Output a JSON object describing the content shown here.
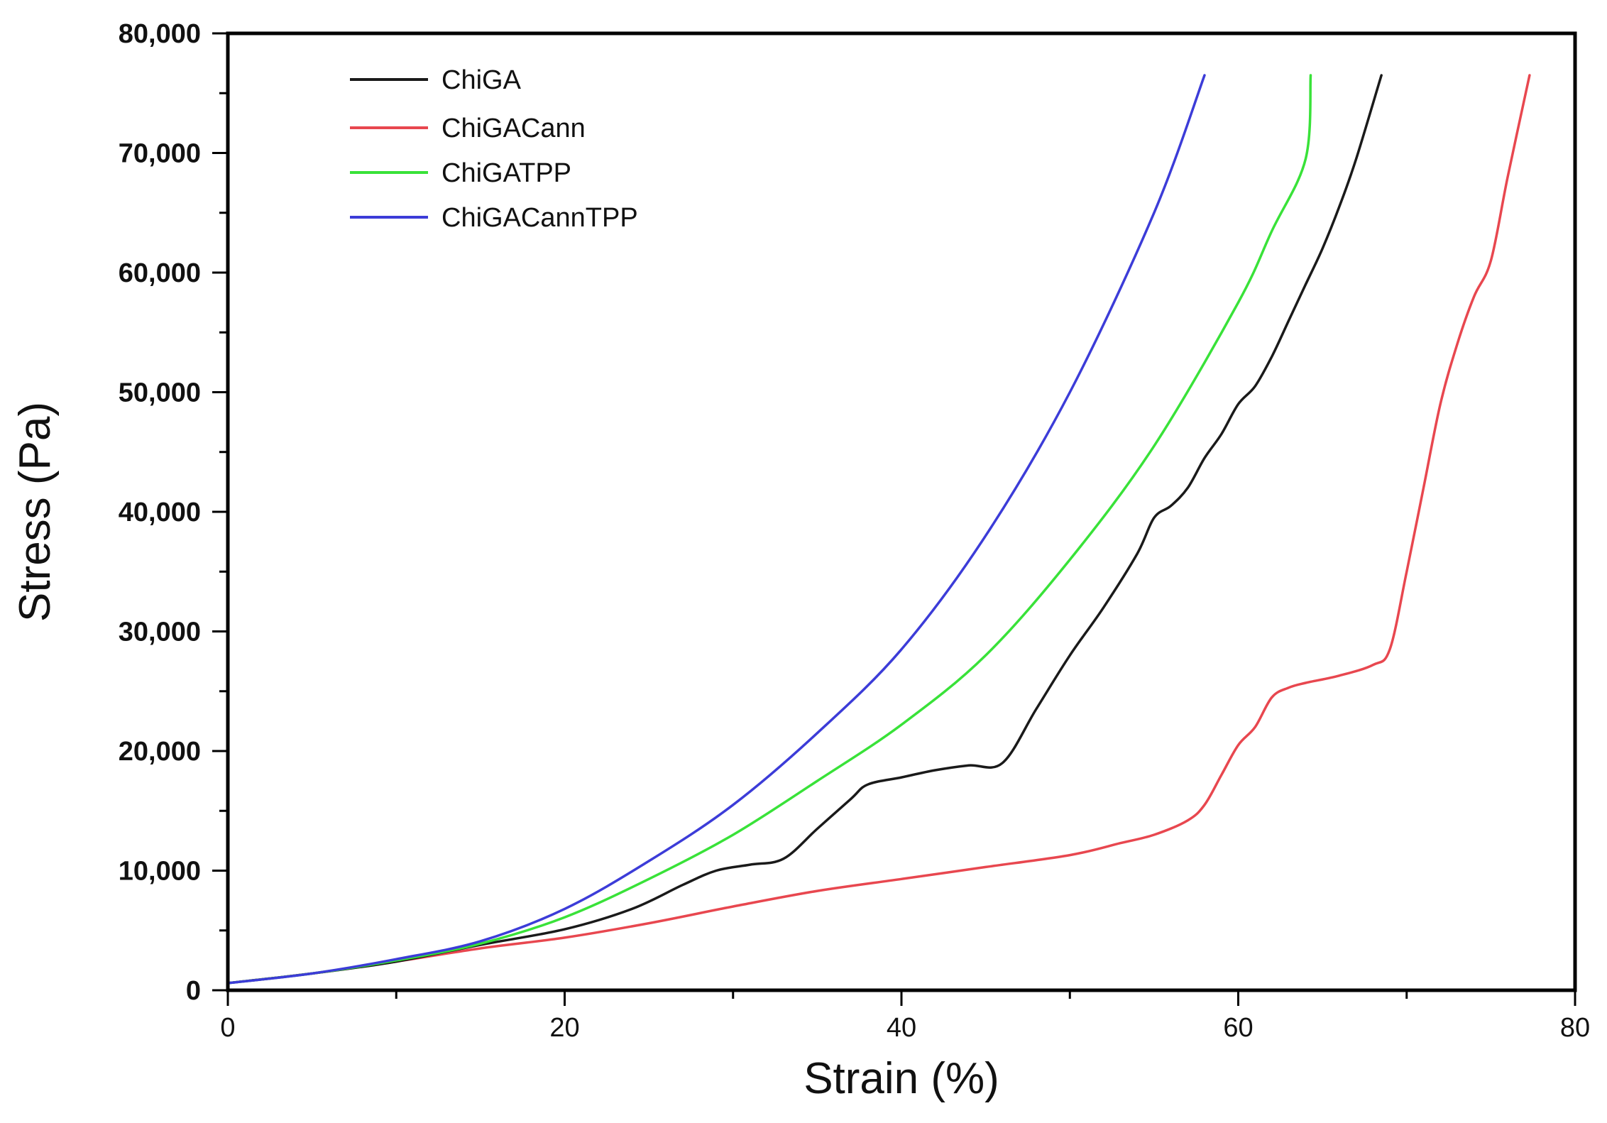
{
  "chart_data": {
    "type": "line",
    "title": "",
    "xlabel": "Strain (%)",
    "ylabel": "Stress (Pa)",
    "xlim": [
      0,
      80
    ],
    "ylim": [
      0,
      80000
    ],
    "x_ticks": [
      0,
      20,
      40,
      60,
      80
    ],
    "x_tick_labels": [
      "0",
      "20",
      "40",
      "60",
      "80"
    ],
    "y_ticks": [
      0,
      10000,
      20000,
      30000,
      40000,
      50000,
      60000,
      70000,
      80000
    ],
    "y_tick_labels": [
      "0",
      "10,000",
      "20,000",
      "30,000",
      "40,000",
      "50,000",
      "60,000",
      "70,000",
      "80,000"
    ],
    "grid": false,
    "legend_position": "top-left",
    "series": [
      {
        "name": "ChiGA",
        "color": "#1a1a1a",
        "points": [
          [
            0,
            600
          ],
          [
            5,
            1400
          ],
          [
            10,
            2400
          ],
          [
            15,
            3800
          ],
          [
            20,
            5100
          ],
          [
            24,
            6800
          ],
          [
            27,
            8800
          ],
          [
            29,
            10000
          ],
          [
            31,
            10500
          ],
          [
            33,
            11000
          ],
          [
            35,
            13500
          ],
          [
            37,
            16000
          ],
          [
            38,
            17200
          ],
          [
            40,
            17800
          ],
          [
            42,
            18400
          ],
          [
            44,
            18800
          ],
          [
            46,
            19000
          ],
          [
            48,
            23500
          ],
          [
            50,
            28000
          ],
          [
            52,
            32000
          ],
          [
            54,
            36500
          ],
          [
            55,
            39500
          ],
          [
            56,
            40500
          ],
          [
            57,
            42000
          ],
          [
            58,
            44500
          ],
          [
            59,
            46500
          ],
          [
            60,
            49000
          ],
          [
            61,
            50500
          ],
          [
            62,
            53000
          ],
          [
            63,
            56000
          ],
          [
            64,
            59000
          ],
          [
            65,
            62000
          ],
          [
            66,
            65500
          ],
          [
            67,
            69500
          ],
          [
            68.5,
            76500
          ]
        ]
      },
      {
        "name": "ChiGACann",
        "color": "#e8474f",
        "points": [
          [
            0,
            600
          ],
          [
            5,
            1400
          ],
          [
            10,
            2400
          ],
          [
            15,
            3500
          ],
          [
            20,
            4400
          ],
          [
            25,
            5600
          ],
          [
            30,
            7000
          ],
          [
            35,
            8300
          ],
          [
            40,
            9300
          ],
          [
            45,
            10300
          ],
          [
            50,
            11300
          ],
          [
            53,
            12300
          ],
          [
            55,
            13000
          ],
          [
            57,
            14200
          ],
          [
            58,
            15500
          ],
          [
            59,
            18000
          ],
          [
            60,
            20500
          ],
          [
            61,
            22000
          ],
          [
            62,
            24500
          ],
          [
            63,
            25300
          ],
          [
            64,
            25700
          ],
          [
            66,
            26300
          ],
          [
            68,
            27200
          ],
          [
            69,
            28500
          ],
          [
            70,
            35000
          ],
          [
            71,
            42000
          ],
          [
            72,
            49000
          ],
          [
            73,
            54000
          ],
          [
            74,
            58000
          ],
          [
            75,
            61000
          ],
          [
            76,
            68000
          ],
          [
            77.3,
            76500
          ]
        ]
      },
      {
        "name": "ChiGATPP",
        "color": "#39e239",
        "points": [
          [
            0,
            600
          ],
          [
            5,
            1400
          ],
          [
            10,
            2500
          ],
          [
            15,
            3900
          ],
          [
            20,
            6100
          ],
          [
            25,
            9300
          ],
          [
            30,
            13000
          ],
          [
            35,
            17500
          ],
          [
            40,
            22200
          ],
          [
            45,
            28000
          ],
          [
            50,
            36000
          ],
          [
            55,
            45500
          ],
          [
            60,
            57500
          ],
          [
            62,
            63500
          ],
          [
            64,
            69500
          ],
          [
            64.3,
            76500
          ]
        ]
      },
      {
        "name": "ChiGACannTPP",
        "color": "#3c3cd8",
        "points": [
          [
            0,
            600
          ],
          [
            5,
            1400
          ],
          [
            10,
            2600
          ],
          [
            15,
            4100
          ],
          [
            20,
            6800
          ],
          [
            25,
            10800
          ],
          [
            30,
            15500
          ],
          [
            35,
            21500
          ],
          [
            40,
            28500
          ],
          [
            45,
            38000
          ],
          [
            50,
            50000
          ],
          [
            55,
            65000
          ],
          [
            58,
            76500
          ]
        ]
      }
    ]
  }
}
